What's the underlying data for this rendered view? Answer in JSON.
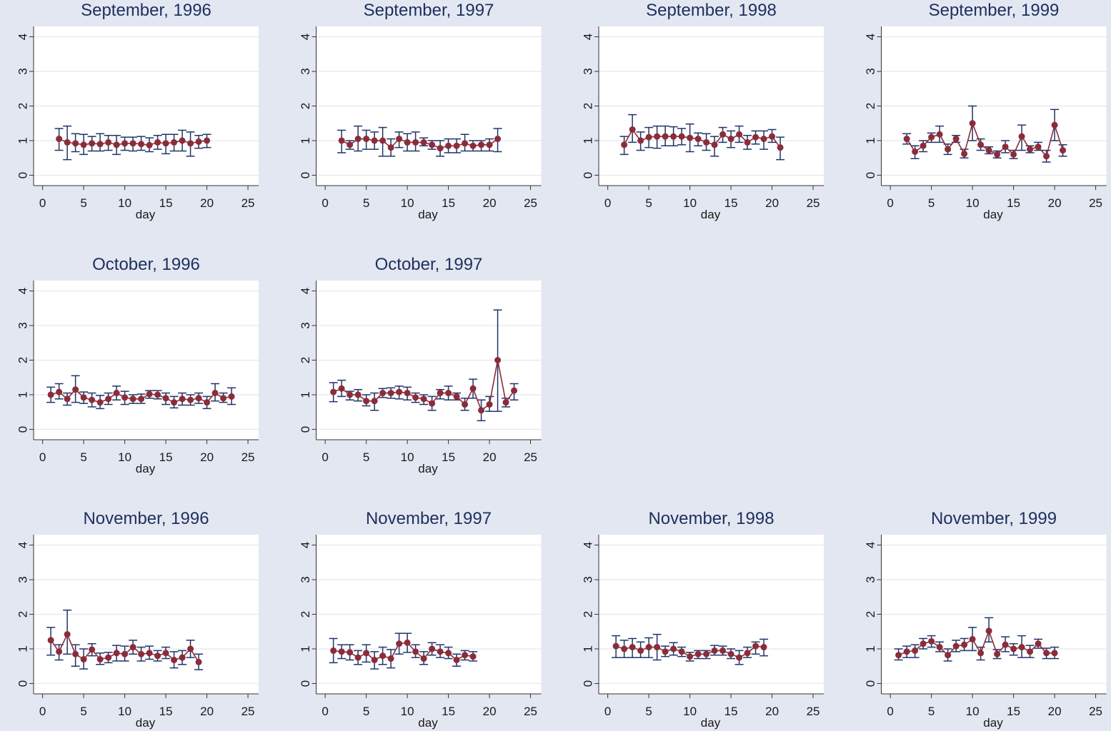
{
  "chart_data": [
    {
      "type": "line",
      "title": "September, 1996",
      "xlabel": "day",
      "x": [
        2,
        3,
        4,
        5,
        6,
        7,
        8,
        9,
        10,
        11,
        12,
        13,
        14,
        15,
        16,
        17,
        18,
        19,
        20
      ],
      "values": [
        1.05,
        0.95,
        0.92,
        0.88,
        0.92,
        0.9,
        0.95,
        0.88,
        0.92,
        0.92,
        0.9,
        0.87,
        0.95,
        0.92,
        0.95,
        1.0,
        0.92,
        0.97,
        1.0
      ],
      "lower": [
        0.72,
        0.45,
        0.68,
        0.6,
        0.7,
        0.7,
        0.72,
        0.6,
        0.72,
        0.7,
        0.72,
        0.68,
        0.75,
        0.62,
        0.7,
        0.7,
        0.55,
        0.78,
        0.8
      ],
      "upper": [
        1.35,
        1.42,
        1.2,
        1.18,
        1.12,
        1.2,
        1.15,
        1.15,
        1.1,
        1.1,
        1.12,
        1.08,
        1.15,
        1.18,
        1.18,
        1.3,
        1.25,
        1.15,
        1.18
      ],
      "xlim": [
        -1.1,
        26.3
      ],
      "ylim": [
        -0.3,
        4.3
      ],
      "xticks": [
        0,
        5,
        10,
        15,
        20,
        25
      ],
      "yticks": [
        0,
        1,
        2,
        3,
        4
      ],
      "grid": true,
      "color": "#8b2c3a",
      "error_color": "#1f3468"
    },
    {
      "type": "line",
      "title": "September, 1997",
      "xlabel": "day",
      "x": [
        2,
        3,
        4,
        5,
        6,
        7,
        8,
        9,
        10,
        11,
        12,
        13,
        14,
        15,
        16,
        17,
        18,
        19,
        20,
        21
      ],
      "values": [
        1.0,
        0.88,
        1.05,
        1.05,
        1.0,
        1.0,
        0.8,
        1.05,
        0.95,
        0.95,
        0.95,
        0.88,
        0.78,
        0.85,
        0.85,
        0.92,
        0.85,
        0.88,
        0.88,
        1.05
      ],
      "lower": [
        0.65,
        0.75,
        0.7,
        0.75,
        0.75,
        0.55,
        0.55,
        0.8,
        0.7,
        0.7,
        0.85,
        0.75,
        0.55,
        0.65,
        0.65,
        0.7,
        0.7,
        0.7,
        0.7,
        0.68
      ],
      "upper": [
        1.3,
        1.0,
        1.42,
        1.3,
        1.25,
        1.38,
        1.05,
        1.25,
        1.2,
        1.25,
        1.08,
        1.0,
        1.0,
        1.05,
        1.05,
        1.18,
        1.0,
        1.0,
        1.05,
        1.35
      ],
      "xlim": [
        -1.1,
        26.3
      ],
      "ylim": [
        -0.3,
        4.3
      ],
      "xticks": [
        0,
        5,
        10,
        15,
        20,
        25
      ],
      "yticks": [
        0,
        1,
        2,
        3,
        4
      ],
      "grid": true,
      "color": "#8b2c3a",
      "error_color": "#1f3468"
    },
    {
      "type": "line",
      "title": "September, 1998",
      "xlabel": "day",
      "x": [
        2,
        3,
        4,
        5,
        6,
        7,
        8,
        9,
        10,
        11,
        12,
        13,
        14,
        15,
        16,
        17,
        18,
        19,
        20,
        21
      ],
      "values": [
        0.88,
        1.32,
        1.0,
        1.1,
        1.12,
        1.12,
        1.12,
        1.12,
        1.08,
        1.05,
        0.95,
        0.88,
        1.18,
        1.05,
        1.18,
        0.95,
        1.1,
        1.05,
        1.12,
        0.8
      ],
      "lower": [
        0.6,
        0.95,
        0.72,
        0.8,
        0.78,
        0.85,
        0.85,
        0.88,
        0.68,
        0.85,
        0.72,
        0.55,
        0.95,
        0.8,
        0.95,
        0.75,
        0.9,
        0.75,
        0.95,
        0.45
      ],
      "upper": [
        1.12,
        1.75,
        1.25,
        1.38,
        1.42,
        1.42,
        1.4,
        1.35,
        1.48,
        1.22,
        1.2,
        1.12,
        1.38,
        1.28,
        1.42,
        1.15,
        1.28,
        1.28,
        1.32,
        1.1
      ],
      "xlim": [
        -1.1,
        26.3
      ],
      "ylim": [
        -0.3,
        4.3
      ],
      "xticks": [
        0,
        5,
        10,
        15,
        20,
        25
      ],
      "yticks": [
        0,
        1,
        2,
        3,
        4
      ],
      "grid": true,
      "color": "#8b2c3a",
      "error_color": "#1f3468"
    },
    {
      "type": "line",
      "title": "September, 1999",
      "xlabel": "day",
      "x": [
        2,
        3,
        4,
        5,
        6,
        7,
        8,
        9,
        10,
        11,
        12,
        13,
        14,
        15,
        16,
        17,
        18,
        19,
        20,
        21
      ],
      "values": [
        1.05,
        0.68,
        0.85,
        1.1,
        1.18,
        0.75,
        1.05,
        0.62,
        1.5,
        0.88,
        0.72,
        0.6,
        0.82,
        0.6,
        1.12,
        0.75,
        0.82,
        0.55,
        1.45,
        0.72
      ],
      "lower": [
        0.9,
        0.48,
        0.68,
        0.95,
        0.95,
        0.6,
        0.95,
        0.5,
        1.0,
        0.72,
        0.62,
        0.5,
        0.65,
        0.48,
        0.72,
        0.65,
        0.72,
        0.38,
        1.0,
        0.55
      ],
      "upper": [
        1.2,
        0.85,
        1.0,
        1.22,
        1.42,
        0.9,
        1.15,
        0.75,
        2.0,
        1.05,
        0.82,
        0.7,
        1.0,
        0.72,
        1.45,
        0.85,
        0.95,
        0.72,
        1.9,
        0.88
      ],
      "xlim": [
        -1.1,
        26.3
      ],
      "ylim": [
        -0.3,
        4.3
      ],
      "xticks": [
        0,
        5,
        10,
        15,
        20,
        25
      ],
      "yticks": [
        0,
        1,
        2,
        3,
        4
      ],
      "grid": true,
      "color": "#8b2c3a",
      "error_color": "#1f3468"
    },
    {
      "type": "line",
      "title": "October, 1996",
      "xlabel": "day",
      "x": [
        1,
        2,
        3,
        4,
        5,
        6,
        7,
        8,
        9,
        10,
        11,
        12,
        13,
        14,
        15,
        16,
        17,
        18,
        19,
        20,
        21,
        22,
        23
      ],
      "values": [
        1.0,
        1.08,
        0.88,
        1.15,
        0.92,
        0.85,
        0.78,
        0.88,
        1.05,
        0.92,
        0.88,
        0.88,
        1.02,
        1.0,
        0.9,
        0.78,
        0.88,
        0.85,
        0.9,
        0.78,
        1.05,
        0.9,
        0.95
      ],
      "lower": [
        0.78,
        0.88,
        0.7,
        0.78,
        0.75,
        0.65,
        0.6,
        0.72,
        0.85,
        0.72,
        0.75,
        0.75,
        0.9,
        0.88,
        0.72,
        0.62,
        0.7,
        0.7,
        0.75,
        0.6,
        0.82,
        0.78,
        0.72
      ],
      "upper": [
        1.22,
        1.32,
        1.05,
        1.55,
        1.08,
        1.05,
        0.98,
        1.05,
        1.25,
        1.1,
        1.0,
        1.02,
        1.12,
        1.12,
        1.05,
        0.95,
        1.05,
        1.0,
        1.05,
        0.95,
        1.32,
        1.05,
        1.2
      ],
      "xlim": [
        -1.1,
        26.3
      ],
      "ylim": [
        -0.3,
        4.3
      ],
      "xticks": [
        0,
        5,
        10,
        15,
        20,
        25
      ],
      "yticks": [
        0,
        1,
        2,
        3,
        4
      ],
      "grid": true,
      "color": "#8b2c3a",
      "error_color": "#1f3468"
    },
    {
      "type": "line",
      "title": "October, 1997",
      "xlabel": "day",
      "x": [
        1,
        2,
        3,
        4,
        5,
        6,
        7,
        8,
        9,
        10,
        11,
        12,
        13,
        14,
        15,
        16,
        17,
        18,
        19,
        20,
        21,
        22,
        23
      ],
      "values": [
        1.08,
        1.18,
        1.0,
        1.0,
        0.82,
        0.82,
        1.05,
        1.05,
        1.08,
        1.05,
        0.92,
        0.88,
        0.75,
        1.05,
        1.05,
        0.95,
        0.72,
        1.18,
        0.55,
        0.72,
        2.0,
        0.78,
        1.12
      ],
      "lower": [
        0.8,
        0.95,
        0.85,
        0.82,
        0.68,
        0.55,
        0.92,
        0.9,
        0.88,
        0.85,
        0.78,
        0.72,
        0.55,
        0.88,
        0.85,
        0.85,
        0.55,
        0.9,
        0.25,
        0.52,
        0.52,
        0.65,
        0.85
      ],
      "upper": [
        1.35,
        1.42,
        1.1,
        1.15,
        1.0,
        1.05,
        1.18,
        1.2,
        1.25,
        1.22,
        1.05,
        1.0,
        0.95,
        1.15,
        1.25,
        1.05,
        0.9,
        1.45,
        0.85,
        0.95,
        3.45,
        0.9,
        1.32
      ],
      "xlim": [
        -1.1,
        26.3
      ],
      "ylim": [
        -0.3,
        4.3
      ],
      "xticks": [
        0,
        5,
        10,
        15,
        20,
        25
      ],
      "yticks": [
        0,
        1,
        2,
        3,
        4
      ],
      "grid": true,
      "color": "#8b2c3a",
      "error_color": "#1f3468"
    },
    {
      "type": "line",
      "title": "November, 1996",
      "xlabel": "day",
      "x": [
        1,
        2,
        3,
        4,
        5,
        6,
        7,
        8,
        9,
        10,
        11,
        12,
        13,
        14,
        15,
        16,
        17,
        18,
        19
      ],
      "values": [
        1.25,
        0.92,
        1.42,
        0.85,
        0.7,
        0.98,
        0.7,
        0.75,
        0.88,
        0.85,
        1.05,
        0.85,
        0.88,
        0.8,
        0.88,
        0.68,
        0.75,
        1.0,
        0.62
      ],
      "lower": [
        0.82,
        0.68,
        0.85,
        0.5,
        0.42,
        0.8,
        0.55,
        0.6,
        0.65,
        0.65,
        0.85,
        0.65,
        0.7,
        0.65,
        0.72,
        0.45,
        0.55,
        0.75,
        0.4
      ],
      "upper": [
        1.62,
        1.12,
        2.12,
        1.12,
        1.0,
        1.15,
        0.88,
        0.9,
        1.1,
        1.08,
        1.25,
        1.05,
        1.08,
        0.95,
        1.05,
        0.92,
        0.95,
        1.25,
        0.85
      ],
      "xlim": [
        -1.1,
        26.3
      ],
      "ylim": [
        -0.3,
        4.3
      ],
      "xticks": [
        0,
        5,
        10,
        15,
        20,
        25
      ],
      "yticks": [
        0,
        1,
        2,
        3,
        4
      ],
      "grid": true,
      "color": "#8b2c3a",
      "error_color": "#1f3468"
    },
    {
      "type": "line",
      "title": "November, 1997",
      "xlabel": "day",
      "x": [
        1,
        2,
        3,
        4,
        5,
        6,
        7,
        8,
        9,
        10,
        11,
        12,
        13,
        14,
        15,
        16,
        17,
        18
      ],
      "values": [
        0.95,
        0.92,
        0.9,
        0.75,
        0.88,
        0.68,
        0.8,
        0.72,
        1.15,
        1.18,
        0.92,
        0.72,
        1.0,
        0.92,
        0.88,
        0.68,
        0.82,
        0.78
      ],
      "lower": [
        0.6,
        0.72,
        0.68,
        0.55,
        0.62,
        0.42,
        0.55,
        0.45,
        0.85,
        0.9,
        0.75,
        0.55,
        0.82,
        0.75,
        0.72,
        0.5,
        0.68,
        0.65
      ],
      "upper": [
        1.3,
        1.12,
        1.12,
        0.95,
        1.12,
        0.92,
        1.05,
        0.98,
        1.45,
        1.45,
        1.12,
        0.92,
        1.18,
        1.12,
        1.05,
        0.85,
        0.95,
        0.92
      ],
      "xlim": [
        -1.1,
        26.3
      ],
      "ylim": [
        -0.3,
        4.3
      ],
      "xticks": [
        0,
        5,
        10,
        15,
        20,
        25
      ],
      "yticks": [
        0,
        1,
        2,
        3,
        4
      ],
      "grid": true,
      "color": "#8b2c3a",
      "error_color": "#1f3468"
    },
    {
      "type": "line",
      "title": "November, 1998",
      "xlabel": "day",
      "x": [
        1,
        2,
        3,
        4,
        5,
        6,
        7,
        8,
        9,
        10,
        11,
        12,
        13,
        14,
        15,
        16,
        17,
        18,
        19
      ],
      "values": [
        1.08,
        1.0,
        1.05,
        0.95,
        1.05,
        1.05,
        0.92,
        1.0,
        0.92,
        0.78,
        0.85,
        0.85,
        0.95,
        0.95,
        0.85,
        0.75,
        0.88,
        1.08,
        1.05
      ],
      "lower": [
        0.75,
        0.75,
        0.75,
        0.75,
        0.75,
        0.68,
        0.78,
        0.82,
        0.78,
        0.65,
        0.72,
        0.72,
        0.82,
        0.82,
        0.72,
        0.55,
        0.75,
        0.85,
        0.8
      ],
      "upper": [
        1.38,
        1.25,
        1.3,
        1.2,
        1.32,
        1.42,
        1.08,
        1.18,
        1.05,
        0.9,
        0.95,
        0.95,
        1.1,
        1.08,
        1.0,
        0.95,
        1.05,
        1.2,
        1.28
      ],
      "xlim": [
        -1.1,
        26.3
      ],
      "ylim": [
        -0.3,
        4.3
      ],
      "xticks": [
        0,
        5,
        10,
        15,
        20,
        25
      ],
      "yticks": [
        0,
        1,
        2,
        3,
        4
      ],
      "grid": true,
      "color": "#8b2c3a",
      "error_color": "#1f3468"
    },
    {
      "type": "line",
      "title": "November, 1999",
      "xlabel": "day",
      "x": [
        1,
        2,
        3,
        4,
        5,
        6,
        7,
        8,
        9,
        10,
        11,
        12,
        13,
        14,
        15,
        16,
        17,
        18,
        19,
        20
      ],
      "values": [
        0.82,
        0.92,
        0.95,
        1.15,
        1.22,
        1.05,
        0.82,
        1.08,
        1.12,
        1.28,
        0.88,
        1.52,
        0.85,
        1.12,
        1.0,
        1.05,
        0.92,
        1.15,
        0.88,
        0.88
      ],
      "lower": [
        0.68,
        0.75,
        0.75,
        1.0,
        1.05,
        0.92,
        0.65,
        0.92,
        0.95,
        0.95,
        0.68,
        1.2,
        0.72,
        0.92,
        0.82,
        0.75,
        0.75,
        1.02,
        0.72,
        0.72
      ],
      "upper": [
        1.0,
        1.08,
        1.12,
        1.3,
        1.38,
        1.2,
        1.0,
        1.25,
        1.3,
        1.62,
        1.05,
        1.9,
        0.98,
        1.35,
        1.15,
        1.38,
        1.1,
        1.28,
        1.02,
        1.05
      ],
      "xlim": [
        -1.1,
        26.3
      ],
      "ylim": [
        -0.3,
        4.3
      ],
      "xticks": [
        0,
        5,
        10,
        15,
        20,
        25
      ],
      "yticks": [
        0,
        1,
        2,
        3,
        4
      ],
      "grid": true,
      "color": "#8b2c3a",
      "error_color": "#1f3468"
    }
  ]
}
